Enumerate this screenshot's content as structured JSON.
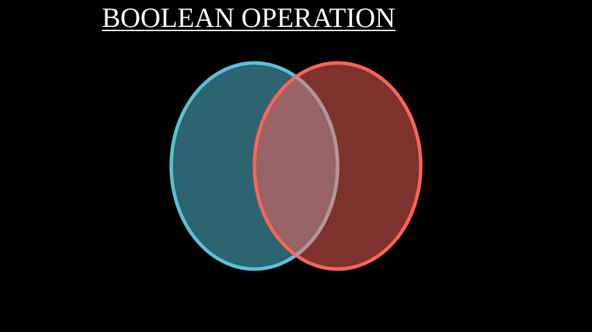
{
  "title": "BOOLEAN OPERATION",
  "colors": {
    "background": "#000000",
    "title": "#ffffff",
    "left_circle_fill": "#2e6370",
    "left_circle_stroke": "#58c2dc",
    "right_circle_fill": "#7e322e",
    "right_circle_stroke": "#fc6456",
    "overlap_fill": "#976364",
    "overlap_stroke": "#b4959a"
  }
}
